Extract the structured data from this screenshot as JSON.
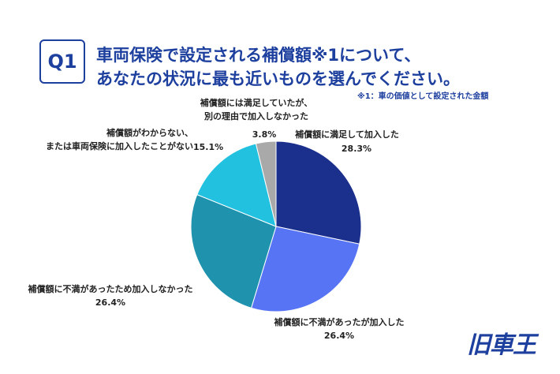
{
  "badge": "Q1",
  "logo": "旧車王",
  "chart_data": {
    "type": "pie",
    "title": [
      "車両保険で設定される補償額※1について、",
      "あなたの状況に最も近いものを選んでください。"
    ],
    "note": "※1：車の価値として設定された金額",
    "categories": [
      "補償額に満足して加入した",
      "補償額に不満があったが加入した",
      "補償額に不満があったため加入しなかった",
      "補償額がわからない、\nまたは車両保険に加入したことがない",
      "補償額には満足していたが、\n別の理由で加入しなかった"
    ],
    "values": [
      28.3,
      26.4,
      26.4,
      15.1,
      3.8
    ],
    "value_labels": [
      "28.3%",
      "26.4%",
      "26.4%",
      "15.1%",
      "3.8%"
    ],
    "colors": [
      "#1b2f8c",
      "#5674f4",
      "#1f93ae",
      "#22c1e0",
      "#a9a9a9"
    ]
  }
}
